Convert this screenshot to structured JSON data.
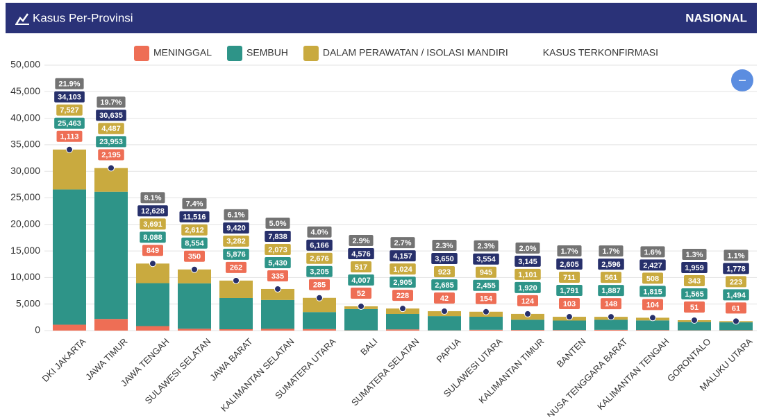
{
  "header": {
    "title": "Kasus Per-Provinsi",
    "scope": "NASIONAL"
  },
  "chart_data": {
    "type": "stacked-bar",
    "categories": [
      "DKI JAKARTA",
      "JAWA TIMUR",
      "JAWA TENGAH",
      "SULAWESI SELATAN",
      "JAWA BARAT",
      "KALIMANTAN SELATAN",
      "SUMATERA UTARA",
      "BALI",
      "SUMATERA SELATAN",
      "PAPUA",
      "SULAWESI UTARA",
      "KALIMANTAN TIMUR",
      "BANTEN",
      "NUSA TENGGARA BARAT",
      "KALIMANTAN TENGAH",
      "GORONTALO",
      "MALUKU UTARA"
    ],
    "series": [
      {
        "name": "MENINGGAL",
        "color": "#ee6e55",
        "values": [
          1113,
          2195,
          849,
          350,
          262,
          335,
          285,
          52,
          228,
          42,
          154,
          124,
          103,
          148,
          104,
          51,
          61
        ],
        "value_labels": [
          "1,113",
          "2,195",
          "849",
          "350",
          "262",
          "335",
          "285",
          "52",
          "228",
          "42",
          "154",
          "124",
          "103",
          "148",
          "104",
          "51",
          "61"
        ]
      },
      {
        "name": "SEMBUH",
        "color": "#2e9488",
        "values": [
          25463,
          23953,
          8088,
          8554,
          5876,
          5430,
          3205,
          4007,
          2905,
          2685,
          2455,
          1920,
          1791,
          1887,
          1815,
          1565,
          1494
        ],
        "value_labels": [
          "25,463",
          "23,953",
          "8,088",
          "8,554",
          "5,876",
          "5,430",
          "3,205",
          "4,007",
          "2,905",
          "2,685",
          "2,455",
          "1,920",
          "1,791",
          "1,887",
          "1,815",
          "1,565",
          "1,494"
        ]
      },
      {
        "name": "DALAM PERAWATAN / ISOLASI MANDIRI",
        "color": "#c9aa3f",
        "values": [
          7527,
          4487,
          3691,
          2612,
          3282,
          2073,
          2676,
          517,
          1024,
          923,
          945,
          1101,
          711,
          561,
          508,
          343,
          223
        ],
        "value_labels": [
          "7,527",
          "4,487",
          "3,691",
          "2,612",
          "3,282",
          "2,073",
          "2,676",
          "517",
          "1,024",
          "923",
          "945",
          "1,101",
          "711",
          "561",
          "508",
          "343",
          "223"
        ]
      }
    ],
    "total": {
      "name": "KASUS TERKONFIRMASI",
      "color": "#27306b",
      "values": [
        34103,
        30635,
        12628,
        11516,
        9420,
        7838,
        6166,
        4576,
        4157,
        3650,
        3554,
        3145,
        2605,
        2596,
        2427,
        1959,
        1778
      ],
      "value_labels": [
        "34,103",
        "30,635",
        "12,628",
        "11,516",
        "9,420",
        "7,838",
        "6,166",
        "4,576",
        "4,157",
        "3,650",
        "3,554",
        "3,145",
        "2,605",
        "2,596",
        "2,427",
        "1,959",
        "1,778"
      ]
    },
    "shares": {
      "color": "#737373",
      "values": [
        21.9,
        19.7,
        8.1,
        7.4,
        6.1,
        5.0,
        4.0,
        2.9,
        2.7,
        2.3,
        2.3,
        2.0,
        1.7,
        1.7,
        1.6,
        1.3,
        1.1
      ],
      "value_labels": [
        "21.9%",
        "19.7%",
        "8.1%",
        "7.4%",
        "6.1%",
        "5.0%",
        "4.0%",
        "2.9%",
        "2.7%",
        "2.3%",
        "2.3%",
        "2.0%",
        "1.7%",
        "1.7%",
        "1.6%",
        "1.3%",
        "1.1%"
      ]
    },
    "ylim": [
      0,
      50000
    ],
    "yticks": [
      0,
      {
        "value": 5000,
        "label": "5,000"
      },
      {
        "value": 10000,
        "label": "10,000"
      },
      {
        "value": 15000,
        "label": "15,000"
      },
      {
        "value": 20000,
        "label": "20,000"
      },
      {
        "value": 25000,
        "label": "25,000"
      },
      {
        "value": 30000,
        "label": "30,000"
      },
      {
        "value": 35000,
        "label": "35,000"
      },
      {
        "value": 40000,
        "label": "40,000"
      },
      {
        "value": 45000,
        "label": "45,000"
      },
      {
        "value": 50000,
        "label": "50,000"
      }
    ],
    "grid": true
  }
}
